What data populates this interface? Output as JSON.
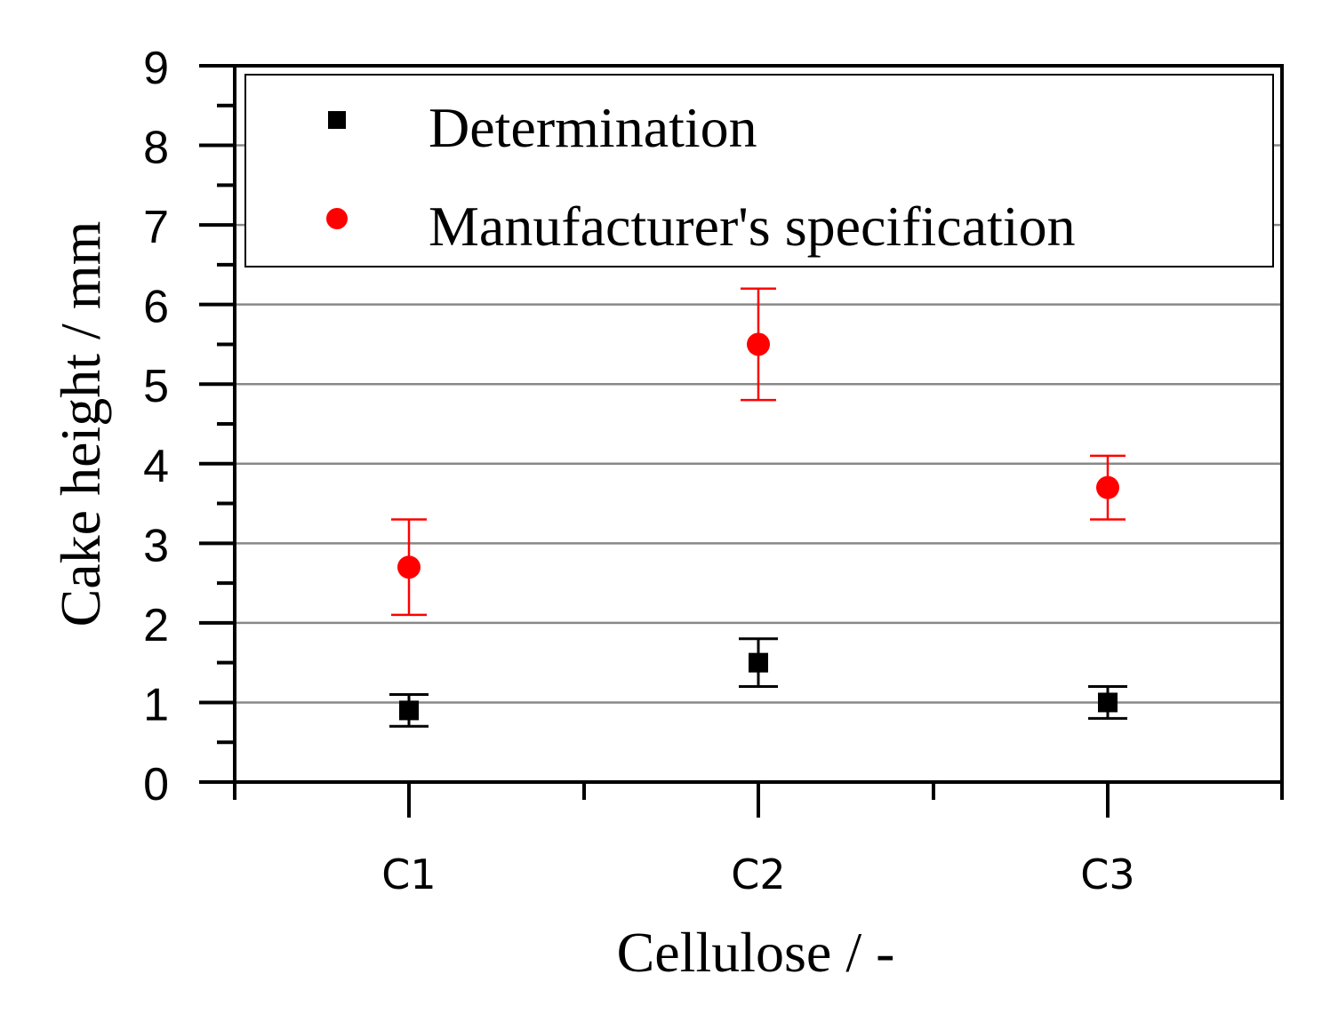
{
  "chart_data": {
    "type": "scatter",
    "title": "",
    "xlabel": "Cellulose / -",
    "ylabel": "Cake height / mm",
    "categories": [
      "C1",
      "C2",
      "C3"
    ],
    "ylim": [
      0,
      9
    ],
    "yticks": [
      "0",
      "1",
      "2",
      "3",
      "4",
      "5",
      "6",
      "7",
      "8",
      "9"
    ],
    "grid": "horizontal",
    "legend_position": "top",
    "series": [
      {
        "name": "Determination",
        "marker": "square",
        "color": "#000000",
        "values": [
          0.9,
          1.5,
          1.0
        ],
        "error_low": [
          0.7,
          1.2,
          0.8
        ],
        "error_high": [
          1.1,
          1.8,
          1.2
        ]
      },
      {
        "name": "Manufacturer's specification",
        "marker": "circle",
        "color": "#ff0000",
        "values": [
          2.7,
          5.5,
          3.7
        ],
        "error_low": [
          2.1,
          4.8,
          3.3
        ],
        "error_high": [
          3.3,
          6.2,
          4.1
        ]
      }
    ]
  }
}
